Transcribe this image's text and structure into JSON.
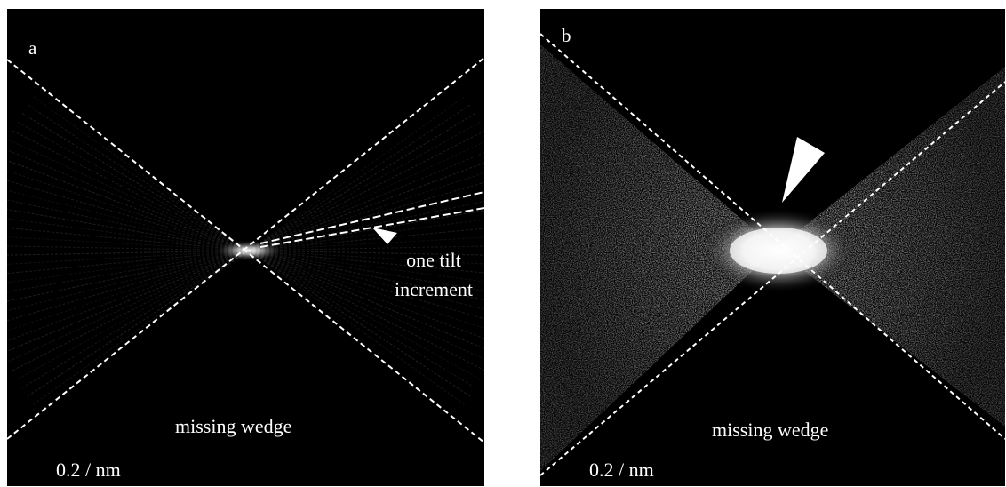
{
  "panels": [
    {
      "id": "a",
      "label": "a",
      "wedge_label": "missing wedge",
      "scale_label": "0.2 / nm",
      "annotation": [
        "one tilt",
        "increment"
      ]
    },
    {
      "id": "b",
      "label": "b",
      "wedge_label": "missing wedge",
      "scale_label": "0.2 / nm"
    }
  ],
  "colors": {
    "background": "#000000",
    "foreground": "#ffffff",
    "page": "#ffffff"
  }
}
